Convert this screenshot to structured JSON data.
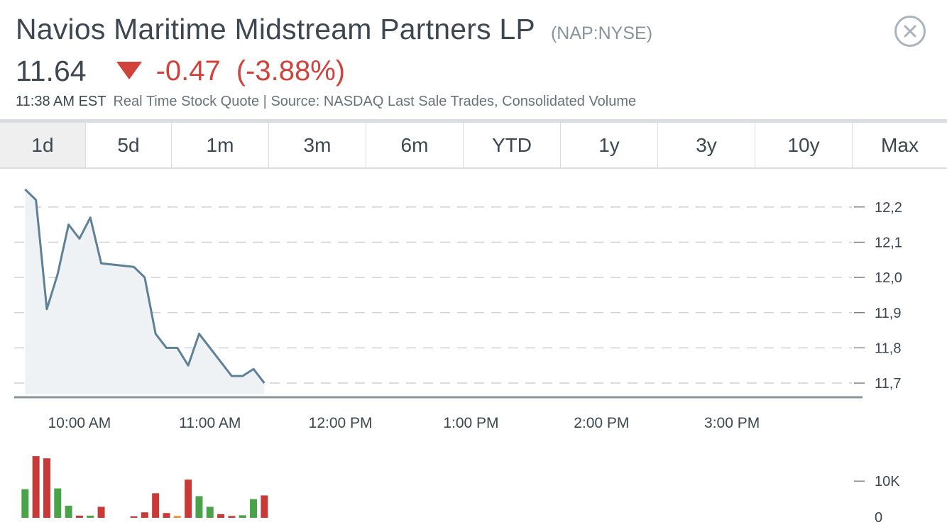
{
  "quote": {
    "company": "Navios Maritime Midstream Partners LP",
    "ticker": "(NAP:NYSE)",
    "price": "11.64",
    "change": "-0.47",
    "change_pct": "(-3.88%)",
    "time": "11:38 AM EST",
    "source": "Real Time Stock Quote | Source: NASDAQ Last Sale Trades, Consolidated Volume",
    "down_color": "#d1433a"
  },
  "close_icon": "close-circle-icon",
  "tabs": [
    {
      "label": "1d",
      "active": true
    },
    {
      "label": "5d",
      "active": false
    },
    {
      "label": "1m",
      "active": false
    },
    {
      "label": "3m",
      "active": false
    },
    {
      "label": "6m",
      "active": false
    },
    {
      "label": "YTD",
      "active": false
    },
    {
      "label": "1y",
      "active": false
    },
    {
      "label": "3y",
      "active": false
    },
    {
      "label": "10y",
      "active": false
    },
    {
      "label": "Max",
      "active": false
    }
  ],
  "chart_data": {
    "type": "line",
    "x_unit": "time of day",
    "x_range": [
      "9:30 AM",
      "4:00 PM"
    ],
    "x_ticks": [
      {
        "label": "10:00 AM",
        "time": "10:00"
      },
      {
        "label": "11:00 AM",
        "time": "11:00"
      },
      {
        "label": "12:00 PM",
        "time": "12:00"
      },
      {
        "label": "1:00 PM",
        "time": "13:00"
      },
      {
        "label": "2:00 PM",
        "time": "14:00"
      },
      {
        "label": "3:00 PM",
        "time": "15:00"
      }
    ],
    "y_ticks": [
      {
        "label": "12,2",
        "value": 12.2
      },
      {
        "label": "12,1",
        "value": 12.1
      },
      {
        "label": "12,0",
        "value": 12.0
      },
      {
        "label": "11,9",
        "value": 11.9
      },
      {
        "label": "11,8",
        "value": 11.8
      },
      {
        "label": "11,7",
        "value": 11.7
      }
    ],
    "ylim": [
      11.68,
      12.26
    ],
    "grid": true,
    "line_color": "#5f8196",
    "fill_color": "#eef2f5",
    "series": [
      {
        "values": [
          [
            "9:35",
            12.25
          ],
          [
            "9:40",
            12.22
          ],
          [
            "9:45",
            11.91
          ],
          [
            "9:50",
            12.01
          ],
          [
            "9:55",
            12.15
          ],
          [
            "10:00",
            12.11
          ],
          [
            "10:05",
            12.17
          ],
          [
            "10:10",
            12.04
          ],
          [
            "10:25",
            12.03
          ],
          [
            "10:30",
            12.0
          ],
          [
            "10:35",
            11.84
          ],
          [
            "10:40",
            11.8
          ],
          [
            "10:45",
            11.8
          ],
          [
            "10:50",
            11.75
          ],
          [
            "10:55",
            11.84
          ],
          [
            "11:00",
            11.8
          ],
          [
            "11:10",
            11.72
          ],
          [
            "11:15",
            11.72
          ],
          [
            "11:20",
            11.74
          ],
          [
            "11:25",
            11.7
          ]
        ]
      }
    ],
    "volume": {
      "y_ticks": [
        {
          "label": "10K",
          "value": 10000
        },
        {
          "label": "0",
          "value": 0
        }
      ],
      "ylim": [
        0,
        17000
      ],
      "up_color": "#4aa34a",
      "down_color": "#c83a38",
      "flat_color": "#ef8c2f",
      "bars": [
        {
          "time": "9:35",
          "value": 7800,
          "dir": "up"
        },
        {
          "time": "9:40",
          "value": 16800,
          "dir": "down"
        },
        {
          "time": "9:45",
          "value": 16200,
          "dir": "down"
        },
        {
          "time": "9:50",
          "value": 8000,
          "dir": "up"
        },
        {
          "time": "9:55",
          "value": 3300,
          "dir": "up"
        },
        {
          "time": "10:00",
          "value": 600,
          "dir": "down"
        },
        {
          "time": "10:05",
          "value": 600,
          "dir": "up"
        },
        {
          "time": "10:10",
          "value": 3000,
          "dir": "down"
        },
        {
          "time": "10:25",
          "value": 400,
          "dir": "down"
        },
        {
          "time": "10:30",
          "value": 1500,
          "dir": "down"
        },
        {
          "time": "10:35",
          "value": 6700,
          "dir": "down"
        },
        {
          "time": "10:40",
          "value": 1300,
          "dir": "down"
        },
        {
          "time": "10:45",
          "value": 500,
          "dir": "flat"
        },
        {
          "time": "10:50",
          "value": 10400,
          "dir": "down"
        },
        {
          "time": "10:55",
          "value": 5900,
          "dir": "up"
        },
        {
          "time": "11:00",
          "value": 3000,
          "dir": "up"
        },
        {
          "time": "11:05",
          "value": 1000,
          "dir": "down"
        },
        {
          "time": "11:10",
          "value": 500,
          "dir": "down"
        },
        {
          "time": "11:15",
          "value": 700,
          "dir": "up"
        },
        {
          "time": "11:20",
          "value": 5100,
          "dir": "up"
        },
        {
          "time": "11:25",
          "value": 6100,
          "dir": "down"
        }
      ]
    }
  }
}
